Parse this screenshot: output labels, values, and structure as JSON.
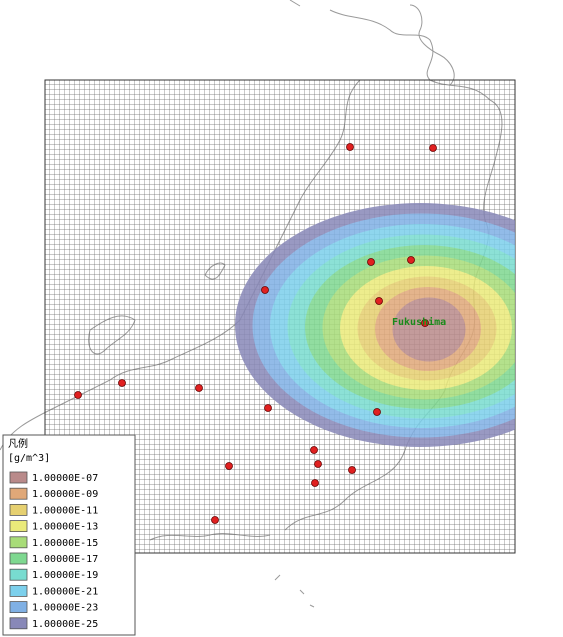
{
  "map": {
    "place_label": "Fukushima",
    "legend": {
      "title": "凡例",
      "unit": "[g/m^3]",
      "items": [
        {
          "label": "1.00000E-07",
          "color": "#b98a8a"
        },
        {
          "label": "1.00000E-09",
          "color": "#e0a878"
        },
        {
          "label": "1.00000E-11",
          "color": "#e6d070"
        },
        {
          "label": "1.00000E-13",
          "color": "#eaea7a"
        },
        {
          "label": "1.00000E-15",
          "color": "#a8dc78"
        },
        {
          "label": "1.00000E-17",
          "color": "#7ed890"
        },
        {
          "label": "1.00000E-19",
          "color": "#78dcd0"
        },
        {
          "label": "1.00000E-21",
          "color": "#7cd0ec"
        },
        {
          "label": "1.00000E-23",
          "color": "#80b0e4"
        },
        {
          "label": "1.00000E-25",
          "color": "#8888b8"
        }
      ]
    }
  }
}
